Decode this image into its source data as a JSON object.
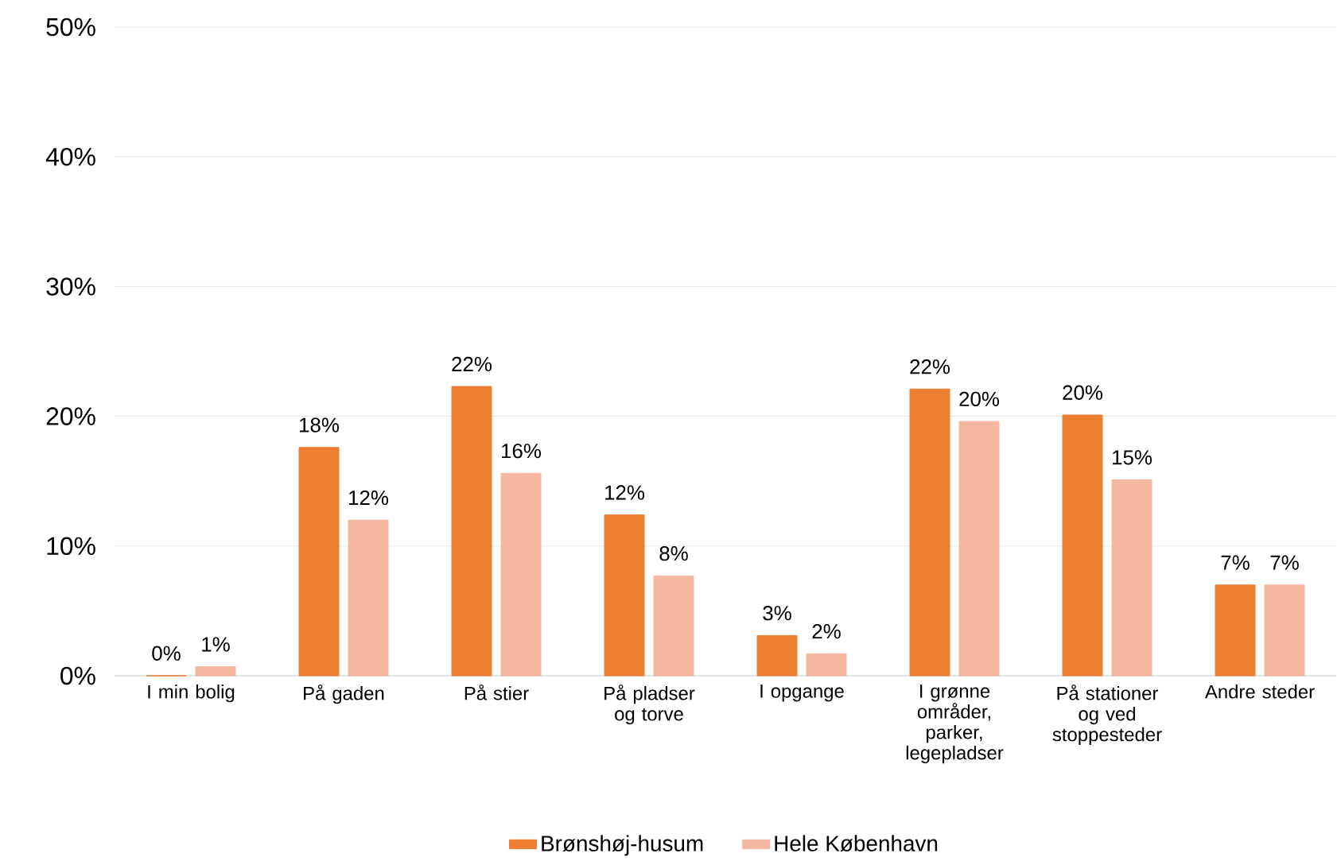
{
  "chart_data": {
    "type": "bar",
    "categories": [
      "I min bolig",
      "På gaden",
      "På stier",
      "På pladser og torve",
      "I opgange",
      "I grønne områder, parker, legepladser",
      "På stationer og ved stoppesteder",
      "Andre steder"
    ],
    "series": [
      {
        "name": "Brønshøj-husum",
        "color": "#ed7d31",
        "values": [
          0,
          17.6,
          22.3,
          12.4,
          3.1,
          22.1,
          20.1,
          7.0
        ],
        "value_labels": [
          "0%",
          "18%",
          "22%",
          "12%",
          "3%",
          "22%",
          "20%",
          "7%"
        ]
      },
      {
        "name": "Hele København",
        "color": "#f4b8a2",
        "values": [
          0.7,
          12.0,
          15.6,
          7.7,
          1.7,
          19.6,
          15.1,
          7.0
        ],
        "value_labels": [
          "1%",
          "12%",
          "16%",
          "8%",
          "2%",
          "20%",
          "15%",
          "7%"
        ]
      }
    ],
    "ylim": [
      0,
      50
    ],
    "yticks": [
      {
        "value": 0,
        "label": "0%"
      },
      {
        "value": 10,
        "label": "10%"
      },
      {
        "value": 20,
        "label": "20%"
      },
      {
        "value": 30,
        "label": "30%"
      },
      {
        "value": 40,
        "label": "40%"
      },
      {
        "value": 50,
        "label": "50%"
      }
    ],
    "grid": "y",
    "legend": "bottom"
  }
}
